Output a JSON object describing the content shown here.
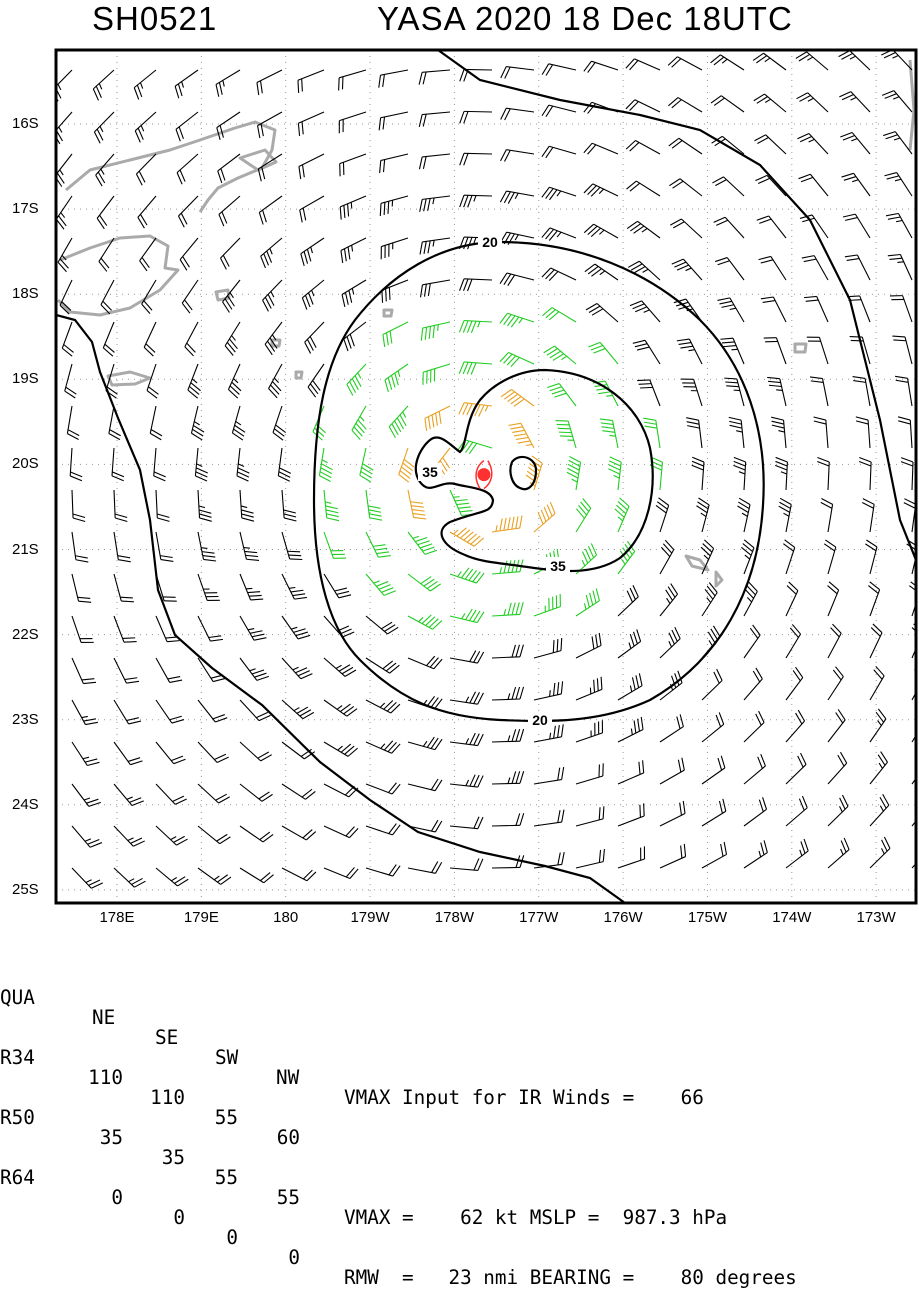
{
  "header": {
    "storm_id": "SH0521",
    "title": "YASA 2020 18 Dec 18UTC"
  },
  "lat_labels": [
    "16S",
    "17S",
    "18S",
    "19S",
    "20S",
    "21S",
    "22S",
    "23S",
    "24S",
    "25S"
  ],
  "lon_labels": [
    "178E",
    "179E",
    "180",
    "179W",
    "178W",
    "177W",
    "176W",
    "175W",
    "174W",
    "173W"
  ],
  "contour_labels": [
    "20",
    "20",
    "35",
    "35"
  ],
  "colors": {
    "strong_wind": "#22cc22",
    "storm_wind": "#e8a020",
    "weak_wind": "#000000",
    "coastline": "#aaaaaa",
    "center": "#ff3030"
  },
  "center": {
    "lat": -20.12,
    "lon": -177.65
  },
  "table": {
    "headers": [
      "QUA",
      "NE",
      "SE",
      "SW",
      "NW"
    ],
    "rows": [
      {
        "label": "R34",
        "values": [
          "110",
          "110",
          "55",
          "60"
        ]
      },
      {
        "label": "R50",
        "values": [
          "35",
          "35",
          "55",
          "55"
        ]
      },
      {
        "label": "R64",
        "values": [
          "0",
          "0",
          "0",
          "0"
        ]
      }
    ],
    "line1": "VMAX Input for IR Winds =    66",
    "line3": "VMAX =    62 kt MSLP =  987.3 hPa",
    "line4": "RMW  =   23 nmi BEARING =    80 degrees"
  }
}
